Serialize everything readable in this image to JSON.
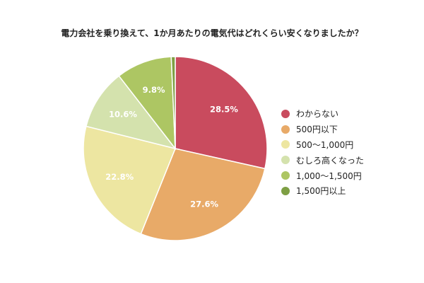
{
  "chart_data": {
    "type": "pie",
    "title": "電力会社を乗り換えて、1か月あたりの電気代はどれくらい安くなりましたか？",
    "unit": "%",
    "slices": [
      {
        "label": "わからない",
        "value": 28.5,
        "value_label": "28.5%",
        "color": "#c94b5e"
      },
      {
        "label": "500円以下",
        "value": 27.6,
        "value_label": "27.6%",
        "color": "#e8aa68"
      },
      {
        "label": "500〜1,000円",
        "value": 22.8,
        "value_label": "22.8%",
        "color": "#ede6a1"
      },
      {
        "label": "むしろ高くなった",
        "value": 10.6,
        "value_label": "10.6%",
        "color": "#d4e2ad"
      },
      {
        "label": "1,000〜1,500円",
        "value": 9.8,
        "value_label": "9.8%",
        "color": "#adc663"
      },
      {
        "label": "1,500円以上",
        "value": 0.7,
        "value_label": "",
        "color": "#7e9f44"
      }
    ],
    "legend_position": "right",
    "start_angle": "12 o'clock",
    "direction": "clockwise"
  }
}
